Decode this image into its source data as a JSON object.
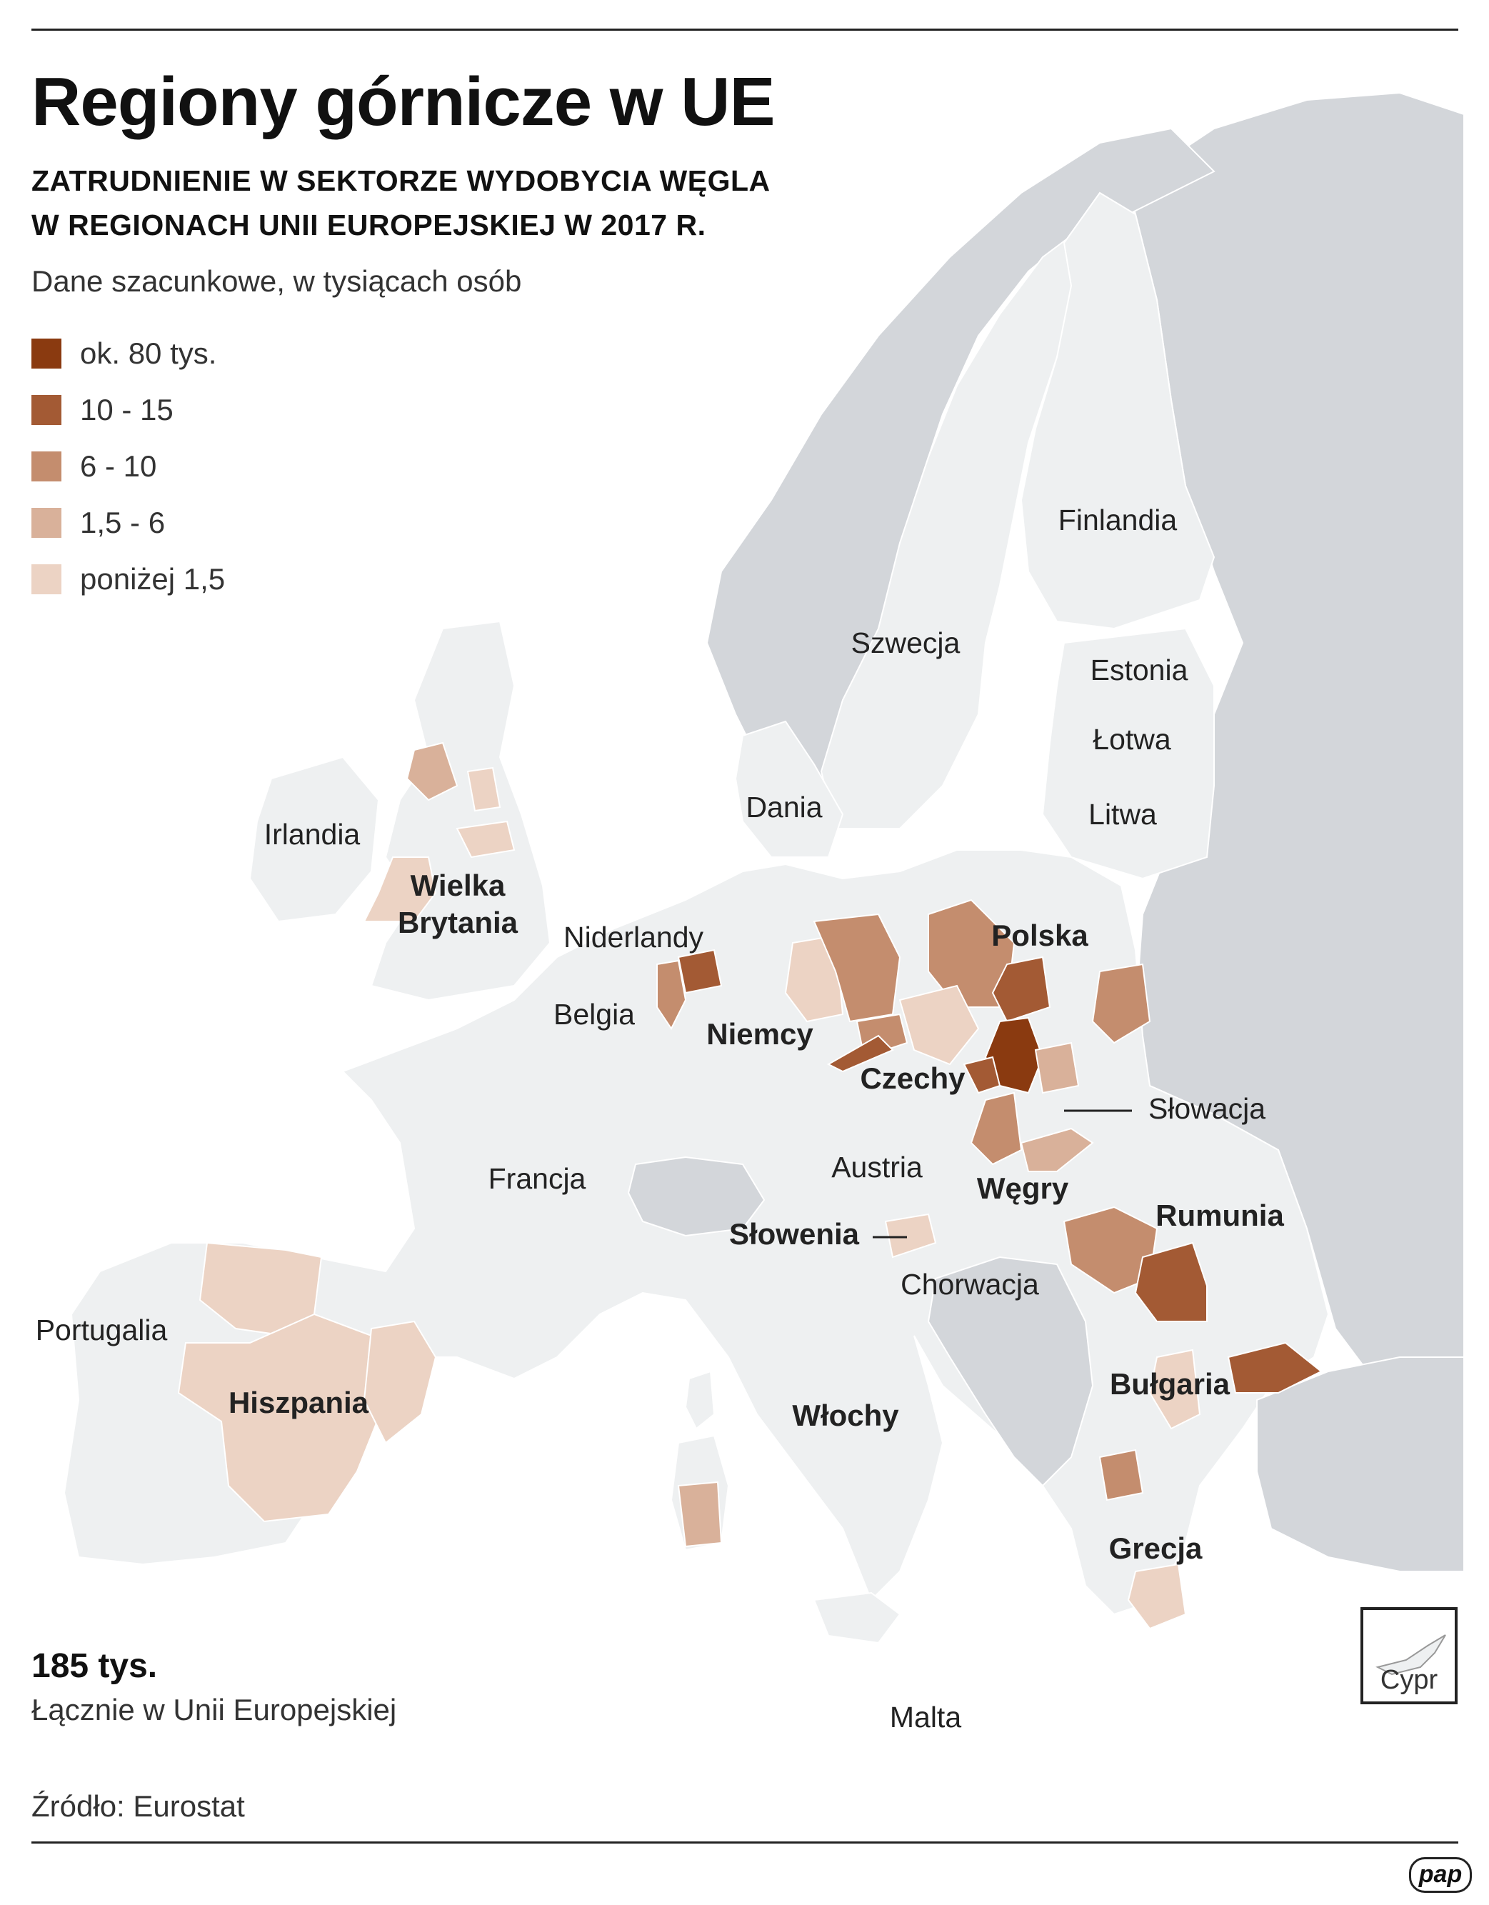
{
  "title": "Regiony górnicze w UE",
  "subtitle_line1": "ZATRUDNIENIE W SEKTORZE WYDOBYCIA WĘGLA",
  "subtitle_line2": "W REGIONACH UNII EUROPEJSKIEJ W 2017 R.",
  "note": "Dane szacunkowe, w tysiącach osób",
  "legend": [
    {
      "label": "ok. 80 tys.",
      "color": "#8a3a10"
    },
    {
      "label": "10 - 15",
      "color": "#a35a34"
    },
    {
      "label": "6 - 10",
      "color": "#c48d6e"
    },
    {
      "label": "1,5 - 6",
      "color": "#d9b19a"
    },
    {
      "label": "poniżej 1,5",
      "color": "#ecd3c4"
    }
  ],
  "colors": {
    "sea": "#ffffff",
    "eu_land": "#eef0f1",
    "non_eu_land": "#d3d6da",
    "border": "#ffffff"
  },
  "labels": {
    "finlandia": "Finlandia",
    "szwecja": "Szwecja",
    "estonia": "Estonia",
    "lotwa": "Łotwa",
    "litwa": "Litwa",
    "dania": "Dania",
    "irlandia": "Irlandia",
    "wielka_brytania_1": "Wielka",
    "wielka_brytania_2": "Brytania",
    "niderlandy": "Niderlandy",
    "belgia": "Belgia",
    "niemcy": "Niemcy",
    "polska": "Polska",
    "czechy": "Czechy",
    "slowacja": "Słowacja",
    "austria": "Austria",
    "wegry": "Węgry",
    "francja": "Francja",
    "slowenia": "Słowenia",
    "chorwacja": "Chorwacja",
    "rumunia": "Rumunia",
    "portugalia": "Portugalia",
    "hiszpania": "Hiszpania",
    "wlochy": "Włochy",
    "bulgaria": "Bułgaria",
    "grecja": "Grecja",
    "malta": "Malta",
    "cypr": "Cypr"
  },
  "total_value": "185 tys.",
  "total_label": "Łącznie w Unii Europejskiej",
  "source": "Źródło: Eurostat",
  "logo": "pap"
}
